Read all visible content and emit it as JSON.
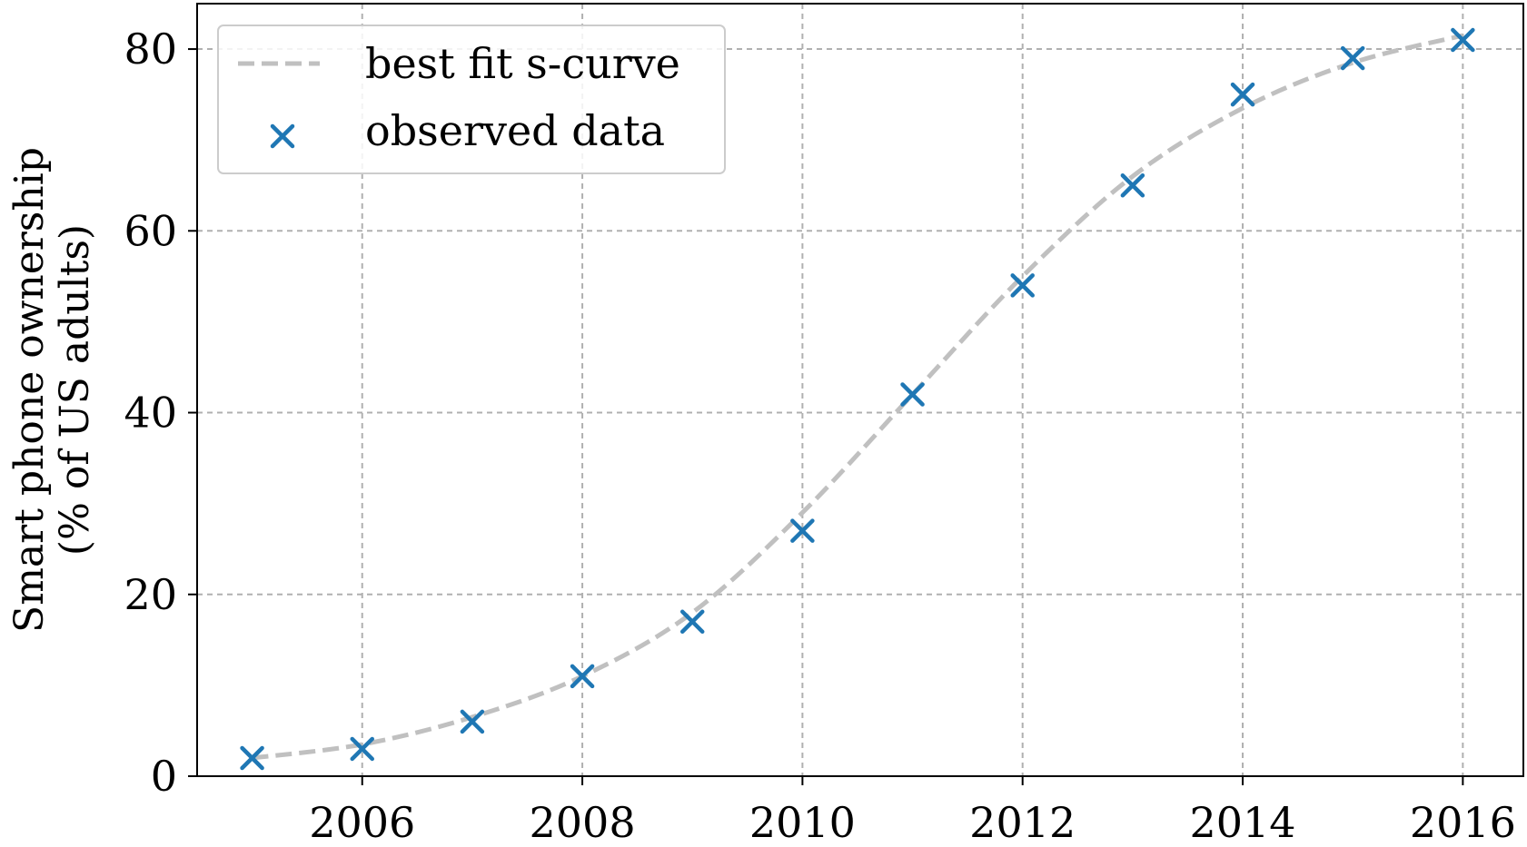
{
  "chart_data": {
    "type": "scatter",
    "xlabel": "",
    "ylabel_lines": [
      "Smart phone ownership",
      "(% of US adults)"
    ],
    "xlim": [
      2004.5,
      2016.55
    ],
    "ylim": [
      0,
      85
    ],
    "x_ticks": [
      2006,
      2008,
      2010,
      2012,
      2014,
      2016
    ],
    "y_ticks": [
      0,
      20,
      40,
      60,
      80
    ],
    "grid": true,
    "legend_position": "top-left",
    "series": [
      {
        "name": "best fit s-curve",
        "kind": "line",
        "style": "dashed",
        "color": "#c0c0c0",
        "x": [
          2005,
          2006,
          2007,
          2008,
          2009,
          2010,
          2011,
          2012,
          2013,
          2014,
          2015,
          2016
        ],
        "y": [
          2,
          3.5,
          6.5,
          11,
          18,
          29,
          42,
          55,
          66,
          73.5,
          78.5,
          81.5
        ]
      },
      {
        "name": "observed data",
        "kind": "scatter",
        "marker": "x",
        "color": "#1f77b4",
        "x": [
          2005,
          2006,
          2007,
          2008,
          2009,
          2010,
          2011,
          2012,
          2013,
          2014,
          2015,
          2016
        ],
        "y": [
          2,
          3,
          6,
          11,
          17,
          27,
          42,
          54,
          65,
          75,
          79,
          81
        ]
      }
    ]
  }
}
